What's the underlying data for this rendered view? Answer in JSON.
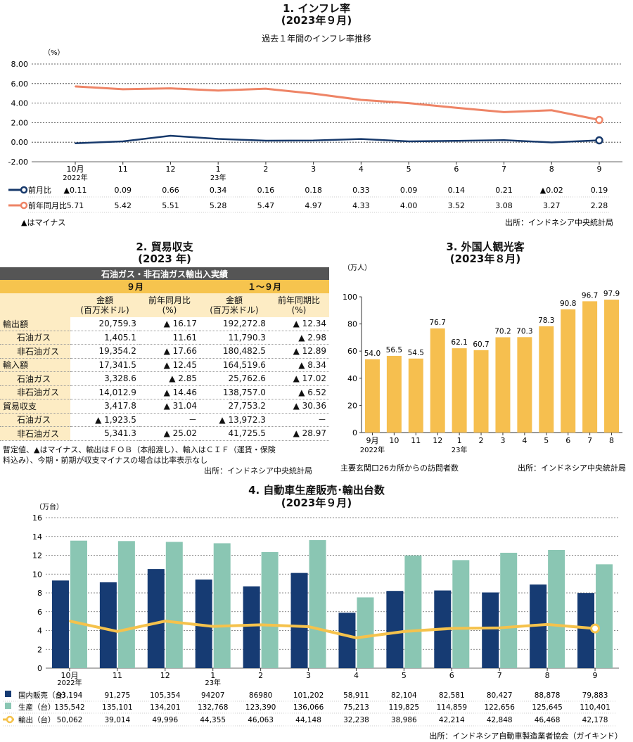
{
  "inflation": {
    "title": "1. インフレ率",
    "title2": "(2023年９月)",
    "subtitle": "過去１年間のインフレ率推移",
    "unit": "（%）",
    "yticks": [
      "8.00",
      "6.00",
      "4.00",
      "2.00",
      "0.00",
      "-2.00"
    ],
    "months": [
      "10月",
      "11",
      "12",
      "1",
      "2",
      "3",
      "4",
      "5",
      "6",
      "7",
      "8",
      "9"
    ],
    "year_labels": [
      "2022年",
      "23年"
    ],
    "mom_label": "前月比",
    "yoy_label": "前年同月比",
    "mom_text": [
      "▲0.11",
      "0.09",
      "0.66",
      "0.34",
      "0.16",
      "0.18",
      "0.33",
      "0.09",
      "0.14",
      "0.21",
      "▲0.02",
      "0.19"
    ],
    "yoy_text": [
      "5.71",
      "5.42",
      "5.51",
      "5.28",
      "5.47",
      "4.97",
      "4.33",
      "4.00",
      "3.52",
      "3.08",
      "3.27",
      "2.28"
    ],
    "note": "▲はマイナス",
    "source": "出所：インドネシア中央統計局",
    "colors": {
      "mom": "#17396b",
      "yoy": "#ee8466"
    }
  },
  "trade": {
    "title": "2. 貿易収支",
    "title2": "(2023 年)",
    "header": "石油ガス・非石油ガス輸出入実績",
    "period1": "９月",
    "period2": "１～９月",
    "col_amount": "金額",
    "col_amount_unit": "(百万米ドル)",
    "col_yoy": "前年同月比",
    "col_ytd": "前年同期比",
    "col_pct": "(%)",
    "rows": [
      {
        "label": "輸出額",
        "v1": "20,759.3",
        "p1": "▲ 16.17",
        "v2": "192,272.8",
        "p2": "▲ 12.34",
        "indent": false
      },
      {
        "label": "石油ガス",
        "v1": "1,405.1",
        "p1": "11.61",
        "v2": "11,790.3",
        "p2": "▲ 2.98",
        "indent": true
      },
      {
        "label": "非石油ガス",
        "v1": "19,354.2",
        "p1": "▲ 17.66",
        "v2": "180,482.5",
        "p2": "▲ 12.89",
        "indent": true
      },
      {
        "label": "輸入額",
        "v1": "17,341.5",
        "p1": "▲ 12.45",
        "v2": "164,519.6",
        "p2": "▲ 8.34",
        "indent": false
      },
      {
        "label": "石油ガス",
        "v1": "3,328.6",
        "p1": "▲ 2.85",
        "v2": "25,762.6",
        "p2": "▲ 17.02",
        "indent": true
      },
      {
        "label": "非石油ガス",
        "v1": "14,012.9",
        "p1": "▲ 14.46",
        "v2": "138,757.0",
        "p2": "▲ 6.52",
        "indent": true
      },
      {
        "label": "貿易収支",
        "v1": "3,417.8",
        "p1": "▲ 31.04",
        "v2": "27,753.2",
        "p2": "▲ 30.36",
        "indent": false
      },
      {
        "label": "石油ガス",
        "v1": "▲ 1,923.5",
        "p1": "－",
        "v2": "▲ 13,972.3",
        "p2": "－",
        "indent": true
      },
      {
        "label": "非石油ガス",
        "v1": "5,341.3",
        "p1": "▲ 25.02",
        "v2": "41,725.5",
        "p2": "▲ 28.97",
        "indent": true
      }
    ],
    "note1": "暫定値、▲はマイナス、輸出はＦＯＢ（本船渡し）、輸入はＣＩＦ（運賃・保険",
    "note2": "料込み）、今期・前期が収支マイナスの場合は比率表示なし",
    "source": "出所：インドネシア中央統計局"
  },
  "tourists": {
    "title": "3. 外国人観光客",
    "title2": "(2023年８月)",
    "unit": "（万人）",
    "yticks": [
      "100",
      "80",
      "60",
      "40",
      "20",
      "0"
    ],
    "months": [
      "9月",
      "10",
      "11",
      "12",
      "1",
      "2",
      "3",
      "4",
      "5",
      "6",
      "7",
      "8"
    ],
    "year_labels": [
      "2022年",
      "23年"
    ],
    "value_labels": [
      "54.0",
      "56.5",
      "54.5",
      "76.7",
      "62.1",
      "60.7",
      "70.2",
      "70.3",
      "78.3",
      "90.8",
      "96.7",
      "97.9"
    ],
    "note": "主要玄関口26カ所からの訪問者数",
    "source": "出所：インドネシア中央統計局",
    "color": "#f6bf4f"
  },
  "autos": {
    "title": "4. 自動車生産販売･輸出台数",
    "title2": "(2023年９月)",
    "unit": "（万台）",
    "yticks": [
      "16",
      "14",
      "12",
      "10",
      "8",
      "6",
      "4",
      "2",
      "0"
    ],
    "months": [
      "10月",
      "11",
      "12",
      "1",
      "2",
      "3",
      "4",
      "5",
      "6",
      "7",
      "8",
      "9"
    ],
    "year_labels": [
      "2022年",
      "23年"
    ],
    "domestic_label": "国内販売（台）",
    "production_label": "生産（台）",
    "export_label": "輸出（台）",
    "domestic_text": [
      "93,194",
      "91,275",
      "105,354",
      "94207",
      "86980",
      "101,202",
      "58,911",
      "82,104",
      "82,581",
      "80,427",
      "88,878",
      "79,883"
    ],
    "production_text": [
      "135,542",
      "135,101",
      "134,201",
      "132,768",
      "123,390",
      "136,066",
      "75,213",
      "119,825",
      "114,859",
      "122,656",
      "125,645",
      "110,401"
    ],
    "export_text": [
      "50,062",
      "39,014",
      "49,996",
      "44,355",
      "46,063",
      "44,148",
      "32,238",
      "38,986",
      "42,214",
      "42,848",
      "46,468",
      "42,178"
    ],
    "source": "出所：インドネシア自動車製造業者協会（ガイキンド）",
    "colors": {
      "domestic": "#163b73",
      "production": "#8ac6b3",
      "export": "#f5c24c"
    }
  },
  "chart_data": [
    {
      "type": "line",
      "title": "インフレ率",
      "ylabel": "（%）",
      "ylim": [
        -2,
        8
      ],
      "categories": [
        "10月",
        "11",
        "12",
        "1",
        "2",
        "3",
        "4",
        "5",
        "6",
        "7",
        "8",
        "9"
      ],
      "series": [
        {
          "name": "前月比",
          "values": [
            -0.11,
            0.09,
            0.66,
            0.34,
            0.16,
            0.18,
            0.33,
            0.09,
            0.14,
            0.21,
            -0.02,
            0.19
          ]
        },
        {
          "name": "前年同月比",
          "values": [
            5.71,
            5.42,
            5.51,
            5.28,
            5.47,
            4.97,
            4.33,
            4.0,
            3.52,
            3.08,
            3.27,
            2.28
          ]
        }
      ],
      "grid": true
    },
    {
      "type": "bar",
      "title": "外国人観光客",
      "ylabel": "（万人）",
      "ylim": [
        0,
        100
      ],
      "categories": [
        "9月",
        "10",
        "11",
        "12",
        "1",
        "2",
        "3",
        "4",
        "5",
        "6",
        "7",
        "8"
      ],
      "values": [
        54.0,
        56.5,
        54.5,
        76.7,
        62.1,
        60.7,
        70.2,
        70.3,
        78.3,
        90.8,
        96.7,
        97.9
      ]
    },
    {
      "type": "bar",
      "title": "自動車生産販売･輸出台数",
      "ylabel": "（万台）",
      "ylim": [
        0,
        16
      ],
      "categories": [
        "10月",
        "11",
        "12",
        "1",
        "2",
        "3",
        "4",
        "5",
        "6",
        "7",
        "8",
        "9"
      ],
      "series": [
        {
          "name": "国内販売（台）",
          "values": [
            93194,
            91275,
            105354,
            94207,
            86980,
            101202,
            58911,
            82104,
            82581,
            80427,
            88878,
            79883
          ]
        },
        {
          "name": "生産（台）",
          "values": [
            135542,
            135101,
            134201,
            132768,
            123390,
            136066,
            75213,
            119825,
            114859,
            122656,
            125645,
            110401
          ]
        },
        {
          "name": "輸出（台）",
          "values": [
            50062,
            39014,
            49996,
            44355,
            46063,
            44148,
            32238,
            38986,
            42214,
            42848,
            46468,
            42178
          ]
        }
      ],
      "grid": true
    }
  ]
}
